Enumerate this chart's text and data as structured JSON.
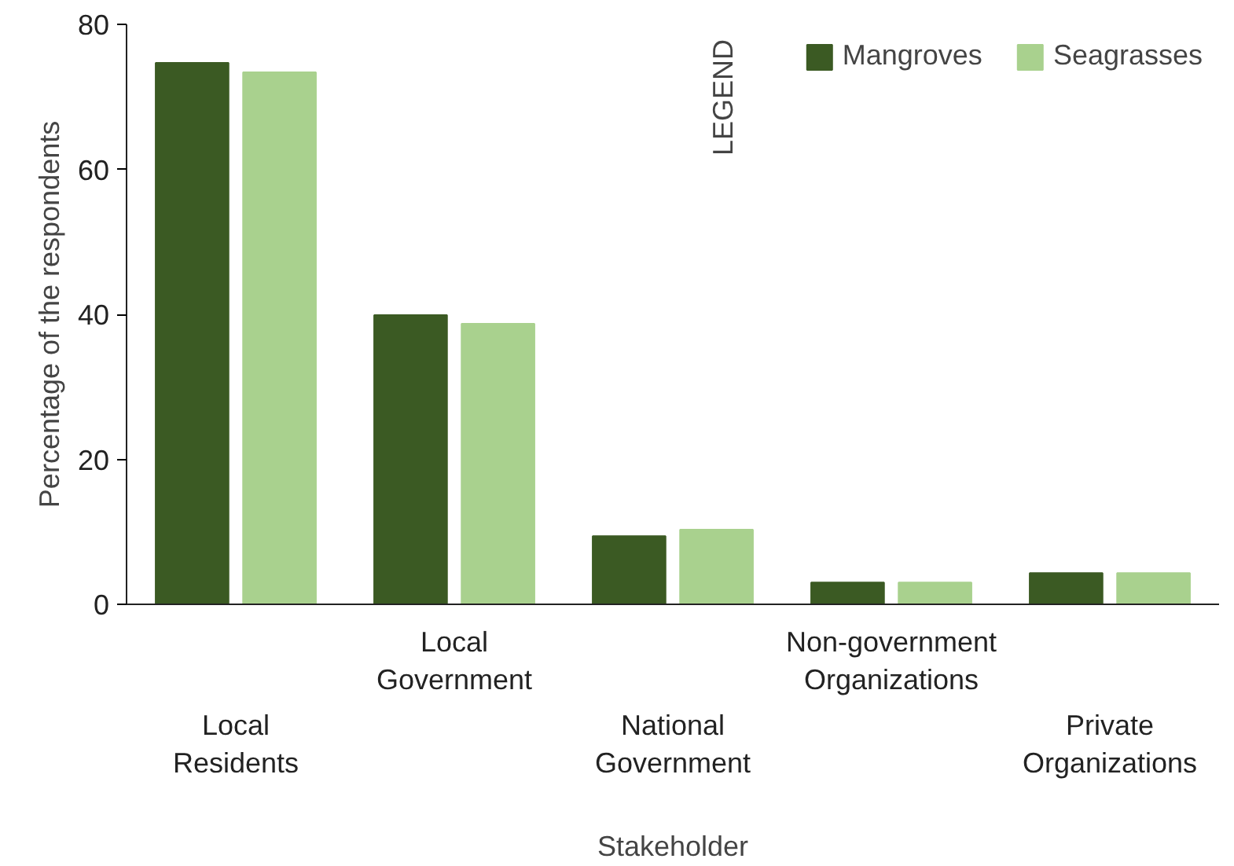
{
  "chart_data": {
    "type": "bar",
    "xlabel": "Stakeholder",
    "ylabel": "Percentage of the respondents",
    "categories": [
      "Local\nResidents",
      "Local\nGovernment",
      "National\nGovernment",
      "Non-government\nOrganizations",
      "Private\nOrganizations"
    ],
    "series": [
      {
        "name": "Mangroves",
        "color": "#3b5a23",
        "values": [
          74.7,
          39.9,
          9.4,
          3.0,
          4.3
        ]
      },
      {
        "name": "Seagrasses",
        "color": "#a9d18e",
        "values": [
          73.4,
          38.7,
          10.3,
          3.0,
          4.3
        ]
      }
    ],
    "ylim": [
      0,
      80
    ],
    "yticks": [
      0,
      20,
      40,
      60,
      80
    ],
    "grid": false,
    "legend": "top right",
    "legend_title": "LEGEND"
  }
}
